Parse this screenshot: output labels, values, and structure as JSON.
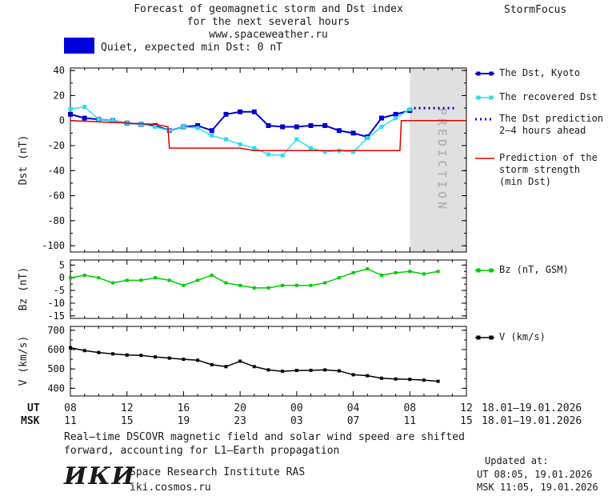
{
  "header": {
    "title_line1": "Forecast of geomagnetic storm and Dst index",
    "title_line2": "for the next several hours",
    "title_line3": "www.spaceweather.ru",
    "brand": "StormFocus"
  },
  "status": {
    "label": "Quiet, expected min Dst: 0 nT"
  },
  "legend": {
    "dst_kyoto": "The Dst, Kyoto",
    "recovered": "The recovered Dst",
    "prediction_line1": "The Dst prediction",
    "prediction_line2": "2–4 hours ahead",
    "storm_line1": "Prediction of the",
    "storm_line2": "storm strength",
    "storm_line3": "(min Dst)",
    "bz": "Bz (nT, GSM)",
    "v": "V (km/s)"
  },
  "axes": {
    "dst_label": "Dst (nT)",
    "bz_label": "Bz (nT)",
    "v_label": "V (km/s)",
    "ut_label": "UT",
    "msk_label": "MSK",
    "ut_ticks": [
      "08",
      "12",
      "16",
      "20",
      "00",
      "04",
      "08",
      "12"
    ],
    "msk_ticks": [
      "11",
      "15",
      "19",
      "23",
      "03",
      "07",
      "11",
      "15"
    ],
    "ut_date": "18.01–19.01.2026",
    "msk_date": "18.01–19.01.2026",
    "prediction_band_label": "PREDICTION"
  },
  "footer": {
    "note_line1": "Real–time DSCOVR magnetic field and solar wind speed are shifted",
    "note_line2": "forward, accounting for L1–Earth propagation",
    "updated_label": "Updated at:",
    "updated_ut": "UT  08:05, 19.01.2026",
    "updated_msk": "MSK 11:05, 19.01.2026",
    "logo_text": "ИКИ",
    "institute": "Space Research Institute RAS",
    "site": "iki.cosmos.ru"
  },
  "colors": {
    "status_swatch": "#0000dd",
    "band": "#e0e0e0",
    "band_text": "#b8b8b8",
    "axis": "#000000"
  },
  "chart_data": [
    {
      "type": "line",
      "title": "Dst index: observed, recovered and predicted",
      "ylabel": "Dst (nT)",
      "xlabel": "UT hours 18.01–19.01.2026",
      "xlim": [
        0,
        28
      ],
      "ylim": [
        -105,
        42
      ],
      "yticks": [
        40,
        20,
        0,
        -20,
        -40,
        -60,
        -80,
        -100
      ],
      "yminor": 10,
      "xticks_hours": [
        0,
        4,
        8,
        12,
        16,
        20,
        24,
        28
      ],
      "prediction_band": [
        24,
        28
      ],
      "series": [
        {
          "name": "The Dst, Kyoto",
          "color": "#0000cc",
          "marker": "square",
          "marker_size": 6,
          "width": 2,
          "x": [
            0,
            1,
            2,
            3,
            4,
            5,
            6,
            7,
            8,
            9,
            10,
            11,
            12,
            13,
            14,
            15,
            16,
            17,
            18,
            19,
            20,
            21,
            22,
            23,
            24
          ],
          "values": [
            5,
            2,
            1,
            0,
            -2,
            -3,
            -4,
            -8,
            -5,
            -4,
            -8,
            5,
            7,
            7,
            -4,
            -5,
            -5,
            -4,
            -4,
            -8,
            -10,
            -13,
            2,
            5,
            8
          ]
        },
        {
          "name": "The recovered Dst",
          "color": "#2adef0",
          "marker": "square",
          "marker_size": 5,
          "width": 1.5,
          "x": [
            0,
            1,
            2,
            3,
            4,
            5,
            6,
            7,
            8,
            9,
            10,
            11,
            12,
            13,
            14,
            15,
            16,
            17,
            18,
            19,
            20,
            21,
            22,
            23,
            24
          ],
          "values": [
            9,
            11,
            1,
            0,
            -2,
            -3,
            -5,
            -8,
            -5,
            -6,
            -12,
            -15,
            -19,
            -22,
            -27,
            -28,
            -15,
            -22,
            -25,
            -24,
            -25,
            -14,
            -5,
            2,
            9
          ]
        },
        {
          "name": "The Dst prediction 2–4 hours ahead",
          "color": "#0000cc",
          "style": "dotted",
          "x": [
            24.3,
            27.2
          ],
          "values": [
            10,
            10
          ]
        },
        {
          "name": "Prediction of the storm strength (min Dst)",
          "color": "#dd0000",
          "width": 1.5,
          "x": [
            0,
            2,
            4,
            6,
            6.9,
            7,
            12,
            13,
            23.3,
            23.4,
            28
          ],
          "values": [
            0,
            -1,
            -2,
            -3,
            -5,
            -22,
            -22,
            -24,
            -24,
            0,
            0
          ]
        }
      ]
    },
    {
      "type": "line",
      "title": "Bz (nT, GSM)",
      "ylabel": "Bz (nT)",
      "xlim": [
        0,
        28
      ],
      "ylim": [
        -16,
        7
      ],
      "yticks": [
        5,
        0,
        -5,
        -10,
        -15
      ],
      "yminor": 2.5,
      "xticks_hours": [
        0,
        4,
        8,
        12,
        16,
        20,
        24,
        28
      ],
      "series": [
        {
          "name": "Bz (nT, GSM)",
          "color": "#00cc00",
          "marker": "square",
          "marker_size": 4,
          "width": 1.5,
          "x": [
            0,
            1,
            2,
            3,
            4,
            5,
            6,
            7,
            8,
            9,
            10,
            11,
            12,
            13,
            14,
            15,
            16,
            17,
            18,
            19,
            20,
            21,
            22,
            23,
            24,
            25,
            26
          ],
          "values": [
            0,
            1,
            0,
            -2,
            -1,
            -1,
            0,
            -1,
            -3,
            -1,
            1,
            -2,
            -3,
            -4,
            -4,
            -3,
            -3,
            -3,
            -2,
            0,
            2,
            3.5,
            1,
            2,
            2.5,
            1.5,
            2.5
          ]
        }
      ]
    },
    {
      "type": "line",
      "title": "Solar wind speed V (km/s)",
      "ylabel": "V (km/s)",
      "xlim": [
        0,
        28
      ],
      "ylim": [
        360,
        720
      ],
      "yticks": [
        700,
        600,
        500,
        400
      ],
      "yminor": 50,
      "xticks_hours": [
        0,
        4,
        8,
        12,
        16,
        20,
        24,
        28
      ],
      "series": [
        {
          "name": "V (km/s)",
          "color": "#000000",
          "marker": "square",
          "marker_size": 4,
          "width": 1.5,
          "x": [
            0,
            1,
            2,
            3,
            4,
            5,
            6,
            7,
            8,
            9,
            10,
            11,
            12,
            13,
            14,
            15,
            16,
            17,
            18,
            19,
            20,
            21,
            22,
            23,
            24,
            25,
            26
          ],
          "values": [
            610,
            595,
            585,
            578,
            572,
            570,
            562,
            556,
            550,
            545,
            522,
            512,
            540,
            512,
            495,
            488,
            492,
            493,
            495,
            490,
            470,
            465,
            452,
            448,
            446,
            442,
            436
          ]
        }
      ]
    }
  ]
}
